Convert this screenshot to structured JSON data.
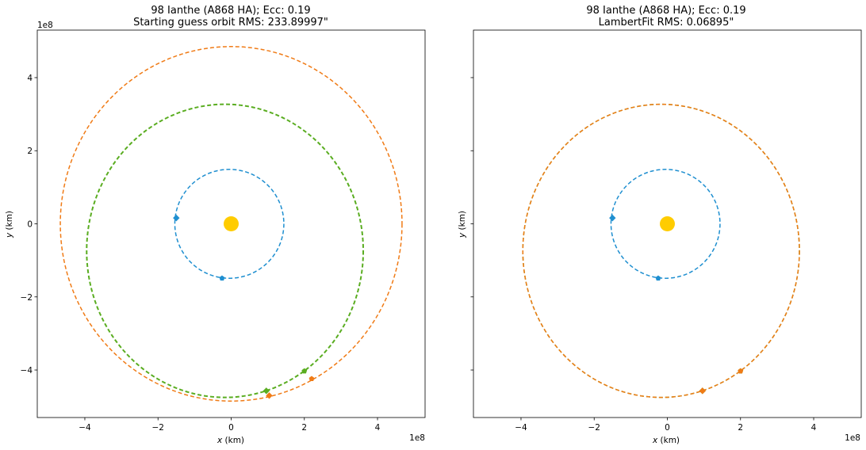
{
  "chart_data": [
    {
      "type": "scatter",
      "title_line1": "98 Ianthe (A868 HA); Ecc: 0.19",
      "title_line2": "Starting guess orbit RMS: 233.89997\"",
      "xlabel_var": "x",
      "xlabel_unit": " (km)",
      "ylabel_var": "y",
      "ylabel_unit": " (km)",
      "x_exponent": "1e8",
      "y_exponent": "1e8",
      "xlim": [
        -5.3,
        5.3
      ],
      "ylim": [
        -5.3,
        5.3
      ],
      "xticks": [
        -4,
        -2,
        0,
        2,
        4
      ],
      "yticks": [
        -4,
        -2,
        0,
        2,
        4
      ],
      "xtick_labels": [
        "−4",
        "−2",
        "0",
        "2",
        "4"
      ],
      "ytick_labels": [
        "−4",
        "−2",
        "0",
        "2",
        "4"
      ],
      "show_y_tick_labels": true,
      "grid": false,
      "sun": {
        "x": 0,
        "y": 0,
        "color": "#ffcc00"
      },
      "orbits": [
        {
          "cx": -0.05,
          "cy": 0.0,
          "rx": 1.49,
          "ry": 1.49,
          "color": "#1f8fd0",
          "width": 1.5
        },
        {
          "cx": -0.17,
          "cy": -0.74,
          "rx": 3.78,
          "ry": 4.01,
          "color": "#5aad21",
          "width": 2
        },
        {
          "cx": 0.0,
          "cy": 0.0,
          "rx": 4.67,
          "ry": 4.85,
          "color": "#f07b16",
          "width": 1.5
        }
      ],
      "points": [
        {
          "x": -1.5,
          "y": 0.16,
          "color": "#1f8fd0",
          "marker": "diamond"
        },
        {
          "x": -0.25,
          "y": -1.49,
          "color": "#1f8fd0",
          "marker": "pentagon"
        },
        {
          "x": 0.96,
          "y": -4.57,
          "color": "#5aad21",
          "marker": "diamond"
        },
        {
          "x": 2.0,
          "y": -4.03,
          "color": "#5aad21",
          "marker": "pentagon"
        },
        {
          "x": 1.04,
          "y": -4.7,
          "color": "#f07b16",
          "marker": "diamond"
        },
        {
          "x": 2.2,
          "y": -4.24,
          "color": "#f07b16",
          "marker": "pentagon"
        }
      ]
    },
    {
      "type": "scatter",
      "title_line1": "98 Ianthe (A868 HA); Ecc: 0.19",
      "title_line2": "LambertFit RMS: 0.06895\"",
      "xlabel_var": "x",
      "xlabel_unit": " (km)",
      "ylabel_var": "y",
      "ylabel_unit": " (km)",
      "x_exponent": "1e8",
      "y_exponent": "",
      "xlim": [
        -5.3,
        5.3
      ],
      "ylim": [
        -5.3,
        5.3
      ],
      "xticks": [
        -4,
        -2,
        0,
        2,
        4
      ],
      "yticks": [
        -4,
        -2,
        0,
        2,
        4
      ],
      "xtick_labels": [
        "−4",
        "−2",
        "0",
        "2",
        "4"
      ],
      "ytick_labels": [],
      "show_y_tick_labels": false,
      "grid": false,
      "sun": {
        "x": 0,
        "y": 0,
        "color": "#ffcc00"
      },
      "orbits": [
        {
          "cx": -0.05,
          "cy": 0.0,
          "rx": 1.49,
          "ry": 1.49,
          "color": "#1f8fd0",
          "width": 1.5
        },
        {
          "cx": -0.17,
          "cy": -0.74,
          "rx": 3.78,
          "ry": 4.01,
          "color": "#5aad21",
          "width": 1.5
        },
        {
          "cx": -0.17,
          "cy": -0.74,
          "rx": 3.78,
          "ry": 4.01,
          "color": "#f07b16",
          "width": 1.5
        }
      ],
      "points": [
        {
          "x": -1.5,
          "y": 0.16,
          "color": "#1f8fd0",
          "marker": "diamond"
        },
        {
          "x": -0.25,
          "y": -1.49,
          "color": "#1f8fd0",
          "marker": "pentagon"
        },
        {
          "x": 0.96,
          "y": -4.57,
          "color": "#5aad21",
          "marker": "diamond"
        },
        {
          "x": 2.0,
          "y": -4.03,
          "color": "#5aad21",
          "marker": "pentagon"
        },
        {
          "x": 0.96,
          "y": -4.57,
          "color": "#f07b16",
          "marker": "diamond"
        },
        {
          "x": 2.0,
          "y": -4.03,
          "color": "#f07b16",
          "marker": "pentagon"
        }
      ]
    }
  ]
}
